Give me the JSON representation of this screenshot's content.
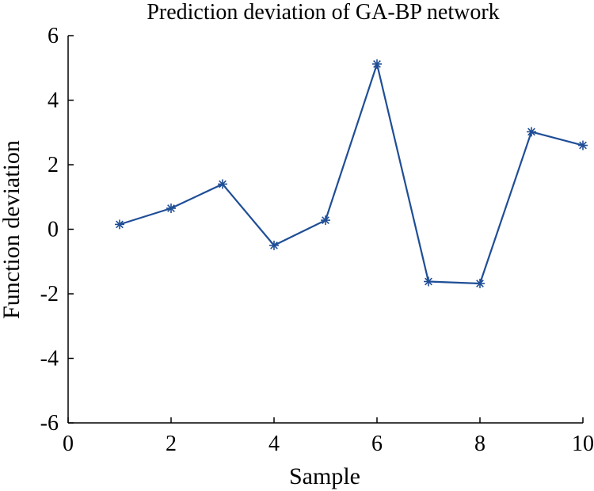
{
  "chart_data": {
    "type": "line",
    "title": "Prediction deviation of GA-BP network",
    "xlabel": "Sample",
    "ylabel": "Function deviation",
    "xlim": [
      0,
      10
    ],
    "ylim": [
      -6,
      6
    ],
    "xticks": [
      0,
      2,
      4,
      6,
      8,
      10
    ],
    "yticks": [
      -6,
      -4,
      -2,
      0,
      2,
      4,
      6
    ],
    "grid": false,
    "series": [
      {
        "name": "deviation",
        "color": "#1f4e96",
        "marker": "asterisk",
        "x": [
          1,
          2,
          3,
          4,
          5,
          6,
          7,
          8,
          9,
          10
        ],
        "values": [
          0.15,
          0.65,
          1.4,
          -0.5,
          0.28,
          5.12,
          -1.62,
          -1.68,
          3.02,
          2.6
        ]
      }
    ]
  }
}
